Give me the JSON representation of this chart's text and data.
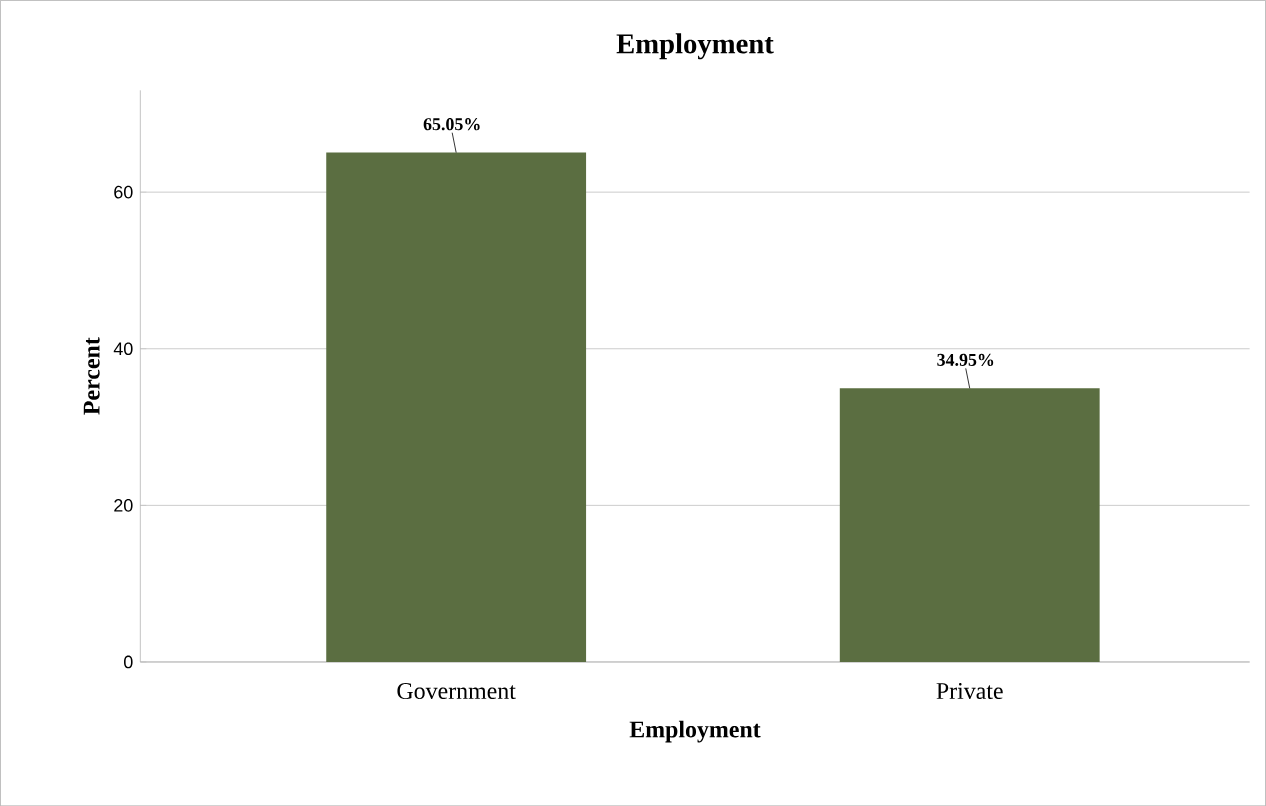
{
  "chart_data": {
    "type": "bar",
    "title": "Employment",
    "xlabel": "Employment",
    "ylabel": "Percent",
    "categories": [
      "Government",
      "Private"
    ],
    "values": [
      65.05,
      34.95
    ],
    "value_labels": [
      "65.05%",
      "34.95%"
    ],
    "color": "#5b6e41",
    "ylim": [
      0,
      73
    ],
    "yticks": [
      0,
      20,
      40,
      60
    ],
    "grid": "y"
  }
}
